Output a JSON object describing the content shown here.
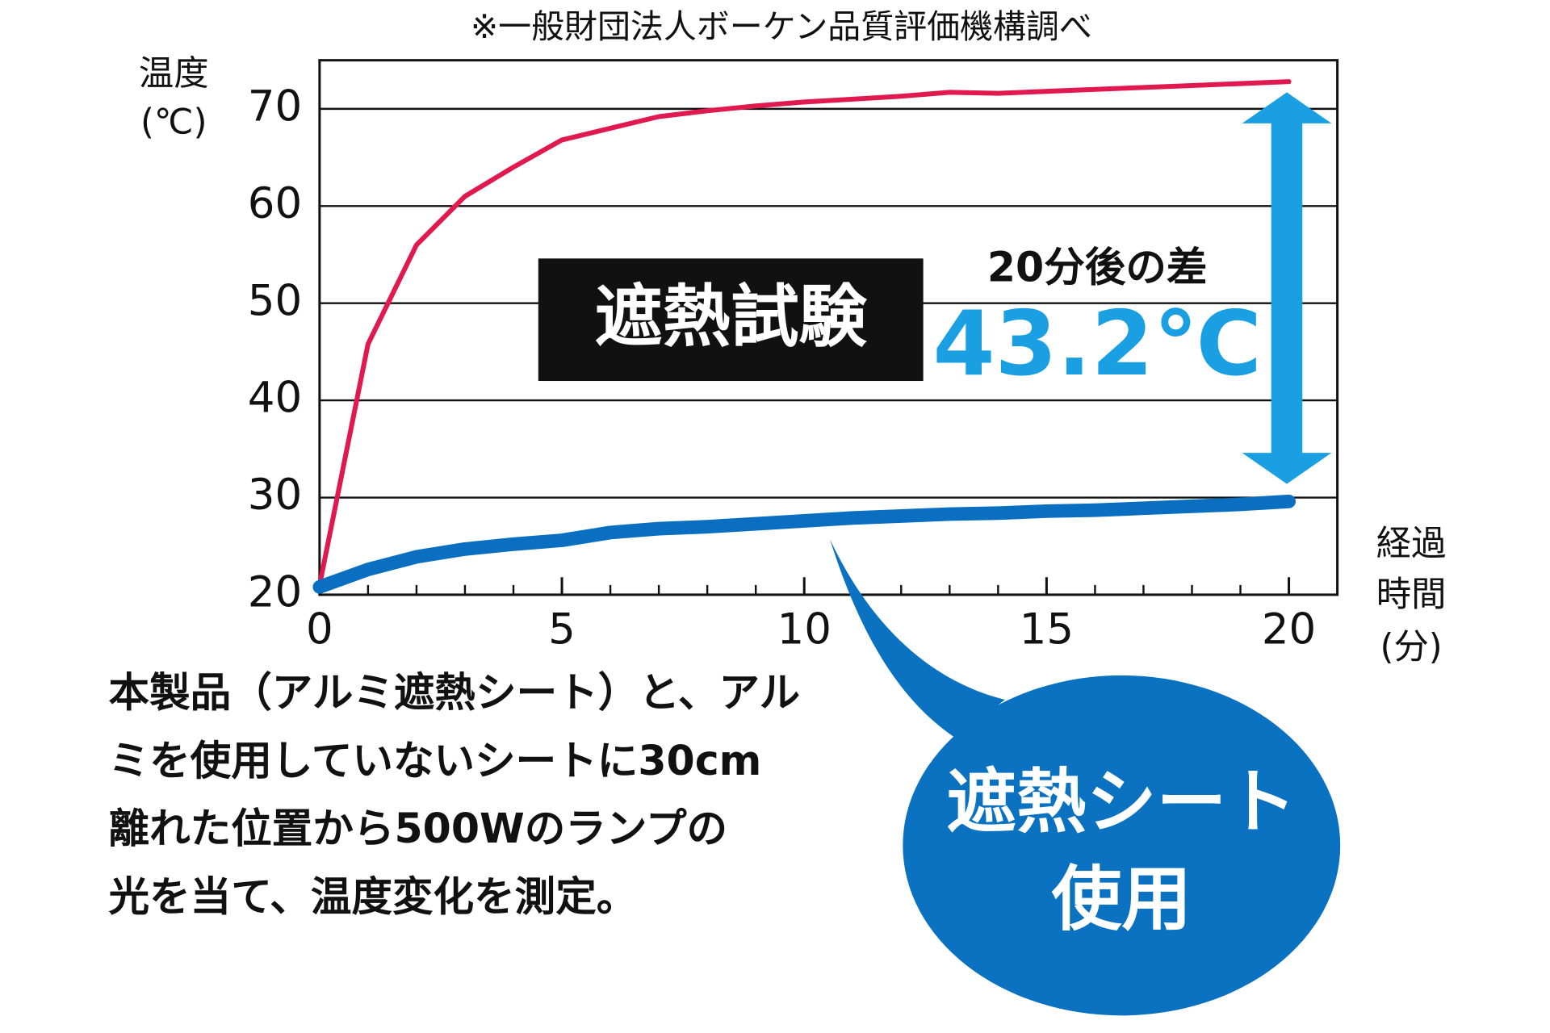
{
  "chart_data": {
    "type": "line",
    "note": "※一般財団法人ボーケン品質評価機構調べ",
    "y_label": [
      "温度",
      "(℃)"
    ],
    "x_label": [
      "経過",
      "時間",
      "(分)"
    ],
    "x": [
      0,
      1,
      2,
      3,
      4,
      5,
      6,
      7,
      8,
      9,
      10,
      11,
      12,
      13,
      14,
      15,
      16,
      17,
      18,
      19,
      20
    ],
    "series": [
      {
        "color": "#e0194f",
        "values": [
          21,
          45.8,
          56,
          61,
          64,
          66.8,
          68,
          69.2,
          69.8,
          70.3,
          70.7,
          71,
          71.3,
          71.7,
          71.6,
          71.8,
          72,
          72.2,
          72.4,
          72.6,
          72.8
        ]
      },
      {
        "color": "#0a6fc0",
        "values": [
          20.8,
          22.6,
          23.9,
          24.7,
          25.2,
          25.6,
          26.4,
          26.8,
          27,
          27.3,
          27.6,
          27.9,
          28.1,
          28.3,
          28.4,
          28.6,
          28.7,
          28.9,
          29.1,
          29.3,
          29.6
        ]
      }
    ],
    "xlim": [
      0,
      21
    ],
    "xticks": [
      0,
      5,
      10,
      15,
      20
    ],
    "ylim": [
      20,
      75
    ],
    "yticks": [
      20,
      30,
      40,
      50,
      60,
      70
    ],
    "grid": true,
    "test_label": "遮熱試験",
    "difference_label": "20分後の差",
    "difference_value": "43.2℃",
    "callout": [
      "遮熱シート",
      "使用"
    ],
    "description": [
      "本製品（アルミ遮熱シート）と、アル",
      "ミを使用していないシートに30cm",
      "離れた位置から500Wのランプの",
      "光を当て、温度変化を測定。"
    ]
  }
}
